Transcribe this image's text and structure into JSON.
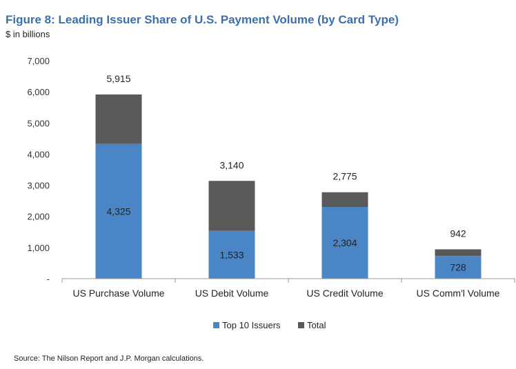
{
  "chart_data": {
    "type": "bar",
    "stacked": true,
    "title": "Figure 8: Leading Issuer Share of U.S. Payment Volume (by Card Type)",
    "subtitle": "$ in billions",
    "categories": [
      "US Purchase Volume",
      "US Debit Volume",
      "US Credit Volume",
      "US Comm'l Volume"
    ],
    "series": [
      {
        "name": "Top 10 Issuers",
        "values": [
          4325,
          1533,
          2304,
          728
        ],
        "color": "#4a86c5"
      },
      {
        "name": "Total",
        "values": [
          5915,
          3140,
          2775,
          942
        ],
        "color": "#595959"
      }
    ],
    "ylim": [
      0,
      7000
    ],
    "yticks": [
      0,
      1000,
      2000,
      3000,
      4000,
      5000,
      6000,
      7000
    ],
    "ytick_labels": [
      "-",
      "1,000",
      "2,000",
      "3,000",
      "4,000",
      "5,000",
      "6,000",
      "7,000"
    ],
    "top10_labels": [
      "4,325",
      "1,533",
      "2,304",
      "728"
    ],
    "total_labels": [
      "5,915",
      "3,140",
      "2,775",
      "942"
    ],
    "grid": false,
    "legend": "bottom"
  },
  "source": "Source: The Nilson Report and J.P. Morgan calculations."
}
